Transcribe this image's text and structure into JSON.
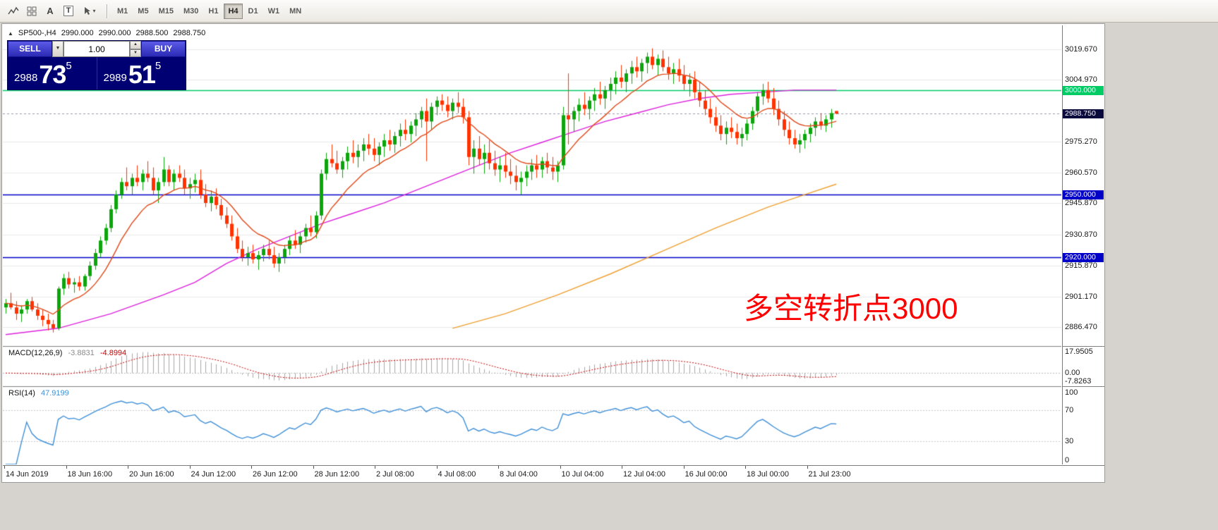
{
  "toolbar": {
    "text_icon_label": "A",
    "textbox_icon_label": "T",
    "cursor_caret_glyph": "▾",
    "timeframes": [
      {
        "label": "M1",
        "active": false
      },
      {
        "label": "M5",
        "active": false
      },
      {
        "label": "M15",
        "active": false
      },
      {
        "label": "M30",
        "active": false
      },
      {
        "label": "H1",
        "active": false
      },
      {
        "label": "H4",
        "active": true
      },
      {
        "label": "D1",
        "active": false
      },
      {
        "label": "W1",
        "active": false
      },
      {
        "label": "MN",
        "active": false
      }
    ]
  },
  "chart": {
    "header": {
      "marker": "▲",
      "symbol": "SP500-,H4",
      "open": "2990.000",
      "high": "2990.000",
      "low": "2988.500",
      "close": "2988.750"
    },
    "trade_panel": {
      "sell_label": "SELL",
      "buy_label": "BUY",
      "volume": "1.00",
      "dropdown_glyph": "▼",
      "spin_up_glyph": "▲",
      "spin_down_glyph": "▼",
      "bid": {
        "prefix": "2988",
        "big": "73",
        "sup": "5"
      },
      "ask": {
        "prefix": "2989",
        "big": "51",
        "sup": "5"
      }
    },
    "annotation": {
      "text": "多空转折点3000",
      "color": "#FF0000"
    },
    "price_axis": [
      {
        "text": "3019.670",
        "value": 3019.67
      },
      {
        "text": "3004.970",
        "value": 3004.97
      },
      {
        "text": "2975.270",
        "value": 2975.27
      },
      {
        "text": "2960.570",
        "value": 2960.57
      },
      {
        "text": "2945.870",
        "value": 2945.87
      },
      {
        "text": "2930.870",
        "value": 2930.87
      },
      {
        "text": "2915.870",
        "value": 2915.87
      },
      {
        "text": "2901.170",
        "value": 2901.17
      },
      {
        "text": "2886.470",
        "value": 2886.47
      }
    ],
    "hlines": [
      {
        "value": 3000,
        "label": "3000.000",
        "color": "#00CC66"
      },
      {
        "value": 2950,
        "label": "2950.000",
        "color": "#0000C8"
      },
      {
        "value": 2920,
        "label": "2920.000",
        "color": "#0000C8"
      }
    ],
    "current_price": {
      "value": 2988.75,
      "label": "2988.750",
      "tag_bg": "#0A0A3C"
    },
    "time_axis": [
      "14 Jun 2019",
      "18 Jun 16:00",
      "20 Jun 16:00",
      "24 Jun 12:00",
      "26 Jun 12:00",
      "28 Jun 12:00",
      "2 Jul 08:00",
      "4 Jul 08:00",
      "8 Jul 04:00",
      "10 Jul 04:00",
      "12 Jul 04:00",
      "16 Jul 00:00",
      "18 Jul 00:00",
      "21 Jul 23:00"
    ]
  },
  "indicators": {
    "macd": {
      "name": "MACD(12,26,9)",
      "main_value": "-3.8831",
      "signal_value": "-4.8994",
      "axis": [
        {
          "text": "17.9505",
          "value": 17.9505
        },
        {
          "text": "0.00",
          "value": 0
        },
        {
          "text": "-7.8263",
          "value": -7.8263
        }
      ]
    },
    "rsi": {
      "name": "RSI(14)",
      "value": "47.9199",
      "axis": [
        {
          "text": "100",
          "value": 100
        },
        {
          "text": "70",
          "value": 70
        },
        {
          "text": "30",
          "value": 30
        },
        {
          "text": "0",
          "value": 0
        }
      ],
      "levels": [
        70,
        30
      ]
    }
  },
  "chart_data": {
    "type": "candlestick",
    "symbol": "SP500-",
    "timeframe": "H4",
    "ylim": [
      2877.5,
      3031
    ],
    "ohlc": [
      [
        2896,
        2900,
        2893,
        2898
      ],
      [
        2898,
        2903,
        2895,
        2896
      ],
      [
        2896,
        2899,
        2890,
        2893
      ],
      [
        2893,
        2897,
        2889,
        2895
      ],
      [
        2895,
        2900,
        2893,
        2899
      ],
      [
        2899,
        2901,
        2894,
        2895
      ],
      [
        2895,
        2898,
        2890,
        2892
      ],
      [
        2892,
        2895,
        2887,
        2890
      ],
      [
        2890,
        2893,
        2885,
        2888
      ],
      [
        2888,
        2890,
        2884,
        2886
      ],
      [
        2886,
        2906,
        2885,
        2905
      ],
      [
        2905,
        2912,
        2902,
        2910
      ],
      [
        2910,
        2913,
        2905,
        2907
      ],
      [
        2907,
        2910,
        2903,
        2908
      ],
      [
        2908,
        2911,
        2904,
        2906
      ],
      [
        2906,
        2912,
        2904,
        2911
      ],
      [
        2911,
        2918,
        2909,
        2916
      ],
      [
        2916,
        2924,
        2914,
        2922
      ],
      [
        2922,
        2930,
        2920,
        2928
      ],
      [
        2928,
        2936,
        2926,
        2934
      ],
      [
        2934,
        2945,
        2932,
        2943
      ],
      [
        2943,
        2952,
        2941,
        2950
      ],
      [
        2950,
        2958,
        2948,
        2956
      ],
      [
        2956,
        2963,
        2952,
        2954
      ],
      [
        2954,
        2960,
        2950,
        2958
      ],
      [
        2958,
        2964,
        2954,
        2956
      ],
      [
        2956,
        2962,
        2952,
        2960
      ],
      [
        2960,
        2966,
        2956,
        2958
      ],
      [
        2958,
        2963,
        2950,
        2952
      ],
      [
        2952,
        2958,
        2946,
        2956
      ],
      [
        2956,
        2968,
        2954,
        2962
      ],
      [
        2962,
        2964,
        2954,
        2956
      ],
      [
        2956,
        2962,
        2952,
        2960
      ],
      [
        2960,
        2964,
        2956,
        2958
      ],
      [
        2958,
        2962,
        2950,
        2953
      ],
      [
        2953,
        2958,
        2948,
        2955
      ],
      [
        2955,
        2960,
        2951,
        2957
      ],
      [
        2957,
        2962,
        2948,
        2950
      ],
      [
        2950,
        2955,
        2944,
        2946
      ],
      [
        2946,
        2952,
        2942,
        2949
      ],
      [
        2949,
        2953,
        2943,
        2945
      ],
      [
        2945,
        2948,
        2938,
        2940
      ],
      [
        2940,
        2944,
        2934,
        2936
      ],
      [
        2936,
        2940,
        2928,
        2930
      ],
      [
        2930,
        2934,
        2922,
        2924
      ],
      [
        2924,
        2928,
        2918,
        2920
      ],
      [
        2920,
        2925,
        2916,
        2922
      ],
      [
        2922,
        2926,
        2917,
        2919
      ],
      [
        2919,
        2923,
        2914,
        2921
      ],
      [
        2921,
        2926,
        2918,
        2924
      ],
      [
        2924,
        2928,
        2919,
        2921
      ],
      [
        2921,
        2925,
        2915,
        2917
      ],
      [
        2917,
        2922,
        2913,
        2920
      ],
      [
        2920,
        2926,
        2917,
        2924
      ],
      [
        2924,
        2930,
        2921,
        2928
      ],
      [
        2928,
        2933,
        2924,
        2926
      ],
      [
        2926,
        2932,
        2922,
        2930
      ],
      [
        2930,
        2936,
        2927,
        2934
      ],
      [
        2934,
        2940,
        2930,
        2932
      ],
      [
        2932,
        2942,
        2929,
        2940
      ],
      [
        2940,
        2962,
        2938,
        2960
      ],
      [
        2960,
        2970,
        2957,
        2967
      ],
      [
        2967,
        2974,
        2963,
        2965
      ],
      [
        2965,
        2971,
        2960,
        2962
      ],
      [
        2962,
        2968,
        2958,
        2966
      ],
      [
        2966,
        2973,
        2962,
        2970
      ],
      [
        2970,
        2976,
        2965,
        2968
      ],
      [
        2968,
        2974,
        2963,
        2971
      ],
      [
        2971,
        2977,
        2966,
        2974
      ],
      [
        2974,
        2979,
        2969,
        2972
      ],
      [
        2972,
        2977,
        2966,
        2969
      ],
      [
        2969,
        2975,
        2964,
        2973
      ],
      [
        2973,
        2979,
        2968,
        2976
      ],
      [
        2976,
        2981,
        2971,
        2974
      ],
      [
        2974,
        2980,
        2970,
        2978
      ],
      [
        2978,
        2984,
        2973,
        2981
      ],
      [
        2981,
        2986,
        2976,
        2979
      ],
      [
        2979,
        2985,
        2975,
        2983
      ],
      [
        2983,
        2989,
        2978,
        2986
      ],
      [
        2986,
        2992,
        2982,
        2990
      ],
      [
        2990,
        2996,
        2966,
        2985
      ],
      [
        2985,
        2994,
        2981,
        2992
      ],
      [
        2992,
        2997,
        2988,
        2995
      ],
      [
        2995,
        2998,
        2990,
        2993
      ],
      [
        2993,
        2997,
        2987,
        2990
      ],
      [
        2990,
        2996,
        2986,
        2994
      ],
      [
        2994,
        2999,
        2989,
        2992
      ],
      [
        2992,
        2996,
        2984,
        2987
      ],
      [
        2987,
        2990,
        2964,
        2968
      ],
      [
        2968,
        2976,
        2960,
        2972
      ],
      [
        2972,
        2978,
        2964,
        2967
      ],
      [
        2967,
        2974,
        2960,
        2970
      ],
      [
        2970,
        2976,
        2962,
        2965
      ],
      [
        2965,
        2971,
        2959,
        2962
      ],
      [
        2962,
        2968,
        2956,
        2964
      ],
      [
        2964,
        2970,
        2958,
        2961
      ],
      [
        2961,
        2967,
        2955,
        2959
      ],
      [
        2959,
        2964,
        2952,
        2956
      ],
      [
        2956,
        2961,
        2950,
        2958
      ],
      [
        2958,
        2964,
        2954,
        2961
      ],
      [
        2961,
        2967,
        2957,
        2964
      ],
      [
        2964,
        2969,
        2958,
        2962
      ],
      [
        2962,
        2968,
        2958,
        2966
      ],
      [
        2966,
        2970,
        2960,
        2963
      ],
      [
        2963,
        2968,
        2957,
        2961
      ],
      [
        2961,
        2966,
        2956,
        2964
      ],
      [
        2964,
        2992,
        2962,
        2988
      ],
      [
        2988,
        3008,
        2974,
        2986
      ],
      [
        2986,
        2992,
        2980,
        2990
      ],
      [
        2990,
        2996,
        2985,
        2993
      ],
      [
        2993,
        2999,
        2988,
        2991
      ],
      [
        2991,
        2997,
        2986,
        2995
      ],
      [
        2995,
        3001,
        2990,
        2998
      ],
      [
        2998,
        3004,
        2993,
        2996
      ],
      [
        2996,
        3002,
        2991,
        3000
      ],
      [
        3000,
        3006,
        2995,
        3003
      ],
      [
        3003,
        3009,
        2998,
        3006
      ],
      [
        3006,
        3012,
        3001,
        3004
      ],
      [
        3004,
        3010,
        2999,
        3008
      ],
      [
        3008,
        3014,
        3003,
        3011
      ],
      [
        3011,
        3016,
        3006,
        3009
      ],
      [
        3009,
        3015,
        3004,
        3013
      ],
      [
        3013,
        3018,
        3008,
        3016
      ],
      [
        3016,
        3020,
        3010,
        3012
      ],
      [
        3012,
        3017,
        3007,
        3015
      ],
      [
        3015,
        3019,
        3009,
        3011
      ],
      [
        3011,
        3016,
        3005,
        3008
      ],
      [
        3008,
        3013,
        3003,
        3010
      ],
      [
        3010,
        3015,
        3004,
        3007
      ],
      [
        3007,
        3012,
        3000,
        3003
      ],
      [
        3003,
        3008,
        2997,
        3005
      ],
      [
        3005,
        3009,
        2996,
        2999
      ],
      [
        2999,
        3004,
        2992,
        2995
      ],
      [
        2995,
        3000,
        2988,
        2991
      ],
      [
        2991,
        2996,
        2984,
        2987
      ],
      [
        2987,
        2992,
        2980,
        2983
      ],
      [
        2983,
        2988,
        2976,
        2979
      ],
      [
        2979,
        2985,
        2974,
        2982
      ],
      [
        2982,
        2987,
        2977,
        2980
      ],
      [
        2980,
        2984,
        2974,
        2977
      ],
      [
        2977,
        2982,
        2973,
        2979
      ],
      [
        2979,
        2986,
        2976,
        2984
      ],
      [
        2984,
        2992,
        2981,
        2990
      ],
      [
        2990,
        2999,
        2987,
        2997
      ],
      [
        2997,
        3003,
        2993,
        3000
      ],
      [
        3000,
        3004,
        2994,
        2996
      ],
      [
        2996,
        3001,
        2988,
        2991
      ],
      [
        2991,
        2995,
        2983,
        2986
      ],
      [
        2986,
        2990,
        2978,
        2981
      ],
      [
        2981,
        2985,
        2974,
        2977
      ],
      [
        2977,
        2981,
        2972,
        2974
      ],
      [
        2974,
        2979,
        2970,
        2976
      ],
      [
        2976,
        2981,
        2972,
        2979
      ],
      [
        2979,
        2984,
        2975,
        2982
      ],
      [
        2982,
        2987,
        2978,
        2985
      ],
      [
        2985,
        2989,
        2981,
        2983
      ],
      [
        2983,
        2988,
        2980,
        2986
      ],
      [
        2986,
        2991,
        2982,
        2989
      ],
      [
        2990,
        2990,
        2988.5,
        2988.75
      ]
    ],
    "overlays": {
      "ma_fast": {
        "type": "ema",
        "period": 12,
        "color": "#E04818"
      },
      "ma_mid": {
        "type": "polyline",
        "color": "#DD22DD",
        "points": [
          [
            0,
            2883
          ],
          [
            10,
            2886
          ],
          [
            20,
            2893
          ],
          [
            30,
            2902
          ],
          [
            36,
            2908
          ],
          [
            42,
            2917
          ],
          [
            48,
            2924
          ],
          [
            54,
            2930
          ],
          [
            60,
            2936
          ],
          [
            66,
            2941
          ],
          [
            72,
            2946
          ],
          [
            78,
            2952
          ],
          [
            84,
            2958
          ],
          [
            90,
            2964
          ],
          [
            96,
            2970
          ],
          [
            102,
            2975
          ],
          [
            108,
            2980
          ],
          [
            114,
            2985
          ],
          [
            120,
            2989
          ],
          [
            126,
            2993
          ],
          [
            132,
            2996
          ],
          [
            138,
            2998
          ],
          [
            144,
            2999
          ],
          [
            150,
            3000
          ],
          [
            158,
            3000
          ]
        ]
      },
      "ma_slow": {
        "type": "polyline",
        "color": "#F0A030",
        "points": [
          [
            85,
            2886
          ],
          [
            95,
            2893
          ],
          [
            105,
            2902
          ],
          [
            115,
            2912
          ],
          [
            125,
            2923
          ],
          [
            135,
            2934
          ],
          [
            145,
            2944
          ],
          [
            152,
            2950
          ],
          [
            158,
            2955
          ]
        ]
      }
    },
    "colors": {
      "up": "#0CA50C",
      "down": "#FF3200",
      "grid": "#E9E9E9",
      "macd_hist": "#A8A8A8",
      "macd_signal": "#CC0000",
      "rsi_line": "#4090D8",
      "level_line": "#C8C8C8",
      "divider": "#808080",
      "current_line": "#9999AA"
    }
  }
}
